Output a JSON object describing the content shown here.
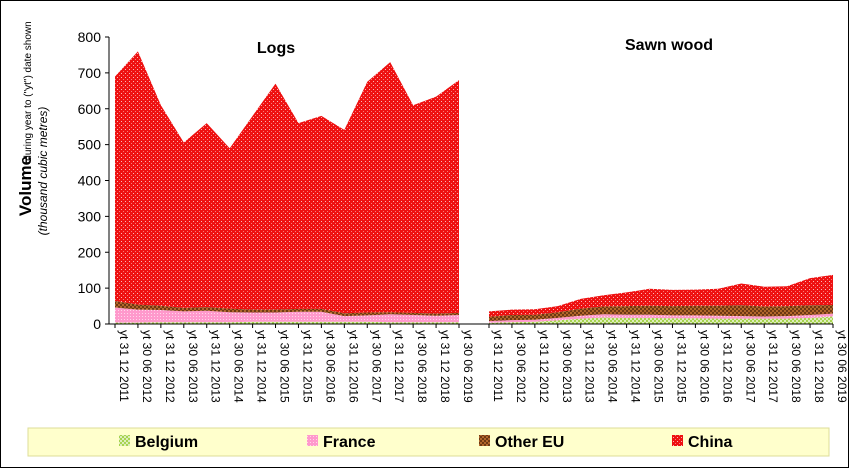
{
  "colors": {
    "belgium": "#99cc33",
    "france": "#ff99cc",
    "other_eu": "#996633",
    "china": "#ee1111",
    "legend_bg": "#ffffcc"
  },
  "chart_data": {
    "type": "area",
    "stacked": true,
    "ylabel_main": "Volume",
    "ylabel_sub": "during year to (\"yt\") date shown",
    "ylabel_unit": "(thousand cubic metres)",
    "ylim": [
      0,
      800
    ],
    "yticks": [
      "0",
      "100",
      "200",
      "300",
      "400",
      "500",
      "600",
      "700",
      "800"
    ],
    "grid": false,
    "legend_position": "bottom",
    "tick_labels": [
      "yt 31 12 2011",
      "yt 30 06 2012",
      "yt 31 12 2012",
      "yt 30 06 2013",
      "yt 31 12 2013",
      "yt 30 06 2014",
      "yt 31 12 2014",
      "yt 30 06 2015",
      "yt 31 12 2015",
      "yt 30 06 2016",
      "yt 31 12 2016",
      "yt 30 06 2017",
      "yt 31 12 2017",
      "yt 30 06 2018",
      "yt 31 12 2018",
      "yt 30 06 2019"
    ],
    "legend": [
      "Belgium",
      "France",
      "Other EU",
      "China"
    ],
    "panels": [
      {
        "title": "Logs",
        "series": [
          {
            "name": "Belgium",
            "values": [
              4,
              4,
              5,
              5,
              5,
              5,
              6,
              6,
              6,
              6,
              6,
              6,
              5,
              5,
              5,
              5
            ]
          },
          {
            "name": "France",
            "values": [
              42,
              36,
              34,
              30,
              32,
              28,
              26,
              26,
              28,
              28,
              16,
              18,
              22,
              20,
              18,
              20
            ]
          },
          {
            "name": "Other EU",
            "values": [
              18,
              14,
              12,
              10,
              10,
              10,
              8,
              8,
              8,
              8,
              8,
              8,
              6,
              6,
              6,
              6
            ]
          },
          {
            "name": "China",
            "values": [
              626,
              706,
              559,
              461,
              513,
              447,
              540,
              630,
              518,
              538,
              511,
              643,
              697,
              579,
              605,
              649
            ]
          }
        ]
      },
      {
        "title": "Sawn wood",
        "series": [
          {
            "name": "Belgium",
            "values": [
              3,
              5,
              6,
              10,
              15,
              18,
              17,
              17,
              16,
              16,
              15,
              15,
              15,
              15,
              17,
              21
            ]
          },
          {
            "name": "France",
            "values": [
              5,
              6,
              6,
              7,
              8,
              9,
              9,
              9,
              8,
              8,
              8,
              7,
              6,
              7,
              8,
              8
            ]
          },
          {
            "name": "Other EU",
            "values": [
              12,
              14,
              14,
              16,
              20,
              22,
              24,
              25,
              26,
              27,
              28,
              30,
              28,
              28,
              27,
              24
            ]
          },
          {
            "name": "China",
            "values": [
              15,
              15,
              15,
              17,
              27,
              31,
              38,
              47,
              45,
              45,
              47,
              61,
              55,
              55,
              76,
              84
            ]
          }
        ]
      }
    ]
  }
}
